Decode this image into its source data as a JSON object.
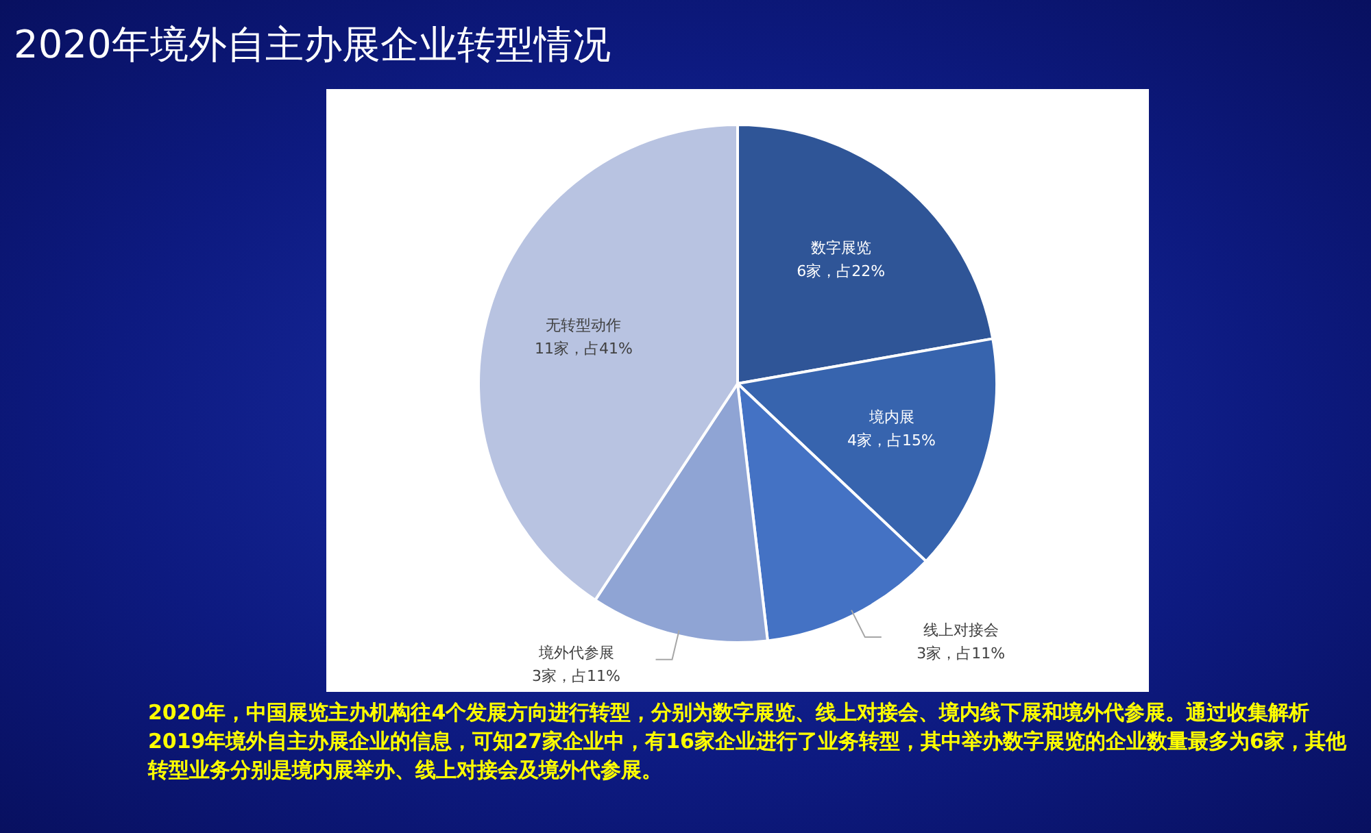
{
  "chart_data": {
    "type": "pie",
    "title": "2020年境外自主办展企业转型情况",
    "categories": [
      "数字展览",
      "境内展",
      "线上对接会",
      "境外代参展",
      "无转型动作"
    ],
    "values": [
      6,
      4,
      3,
      3,
      11
    ],
    "colors": [
      "#2f5597",
      "#3764ae",
      "#4472c4",
      "#8fa4d4",
      "#b8c3e1"
    ],
    "value_labels": [
      "6家，占22%",
      "4家，占15%",
      "3家，占11%",
      "3家，占11%",
      "11家，占41%"
    ],
    "legend": false,
    "annotations": [
      "2020年，中国展览主办机构往4个发展方向进行转型，分别为数字展览、线上对接会、境内线下展和境外代参展。通过收集解析2019年境外自主办展企业的信息，可知27家企业中，有16家企业进行了业务转型，其中举办数字展览的企业数量最多为6家，其他转型业务分别是境内展举办、线上对接会及境外代参展。"
    ]
  }
}
